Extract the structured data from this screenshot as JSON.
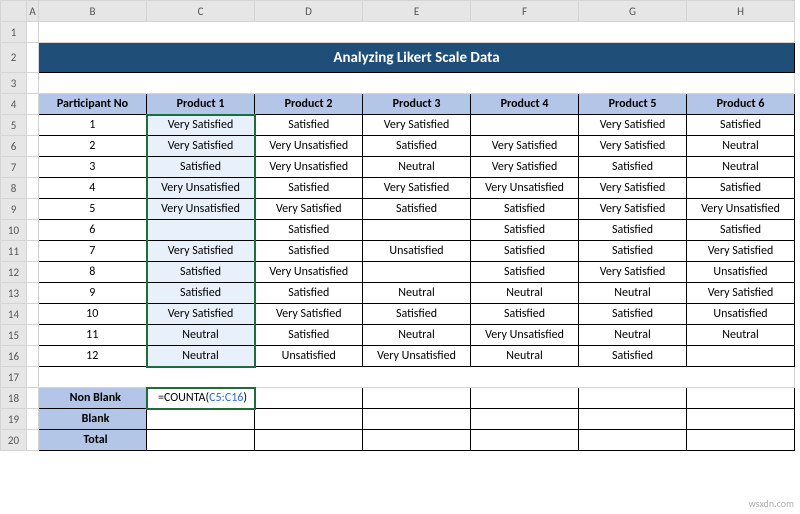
{
  "columns": [
    "A",
    "B",
    "C",
    "D",
    "E",
    "F",
    "G",
    "H"
  ],
  "rows": [
    "1",
    "2",
    "3",
    "4",
    "5",
    "6",
    "7",
    "8",
    "9",
    "10",
    "11",
    "12",
    "13",
    "14",
    "15",
    "16",
    "17",
    "18",
    "19",
    "20"
  ],
  "selected_col_hdr": "C",
  "title": "Analyzing Likert Scale Data",
  "headers": [
    "Participant No",
    "Product 1",
    "Product 2",
    "Product 3",
    "Product 4",
    "Product 5",
    "Product 6"
  ],
  "data": [
    [
      "1",
      "Very Satisfied",
      "Satisfied",
      "Very Satisfied",
      "",
      "Very Satisfied",
      "Satisfied"
    ],
    [
      "2",
      "Very Satisfied",
      "Very Unsatisfied",
      "Satisfied",
      "Very Satisfied",
      "Very Satisfied",
      "Neutral"
    ],
    [
      "3",
      "Satisfied",
      "Very Unsatisfied",
      "Neutral",
      "Very Satisfied",
      "Satisfied",
      "Neutral"
    ],
    [
      "4",
      "Very Unsatisfied",
      "Satisfied",
      "Very Satisfied",
      "Very Unsatisfied",
      "Very Satisfied",
      "Satisfied"
    ],
    [
      "5",
      "Very Unsatisfied",
      "Very Satisfied",
      "Satisfied",
      "Satisfied",
      "Very Satisfied",
      "Very Unsatisfied"
    ],
    [
      "6",
      "",
      "Satisfied",
      "",
      "Satisfied",
      "Satisfied",
      "Satisfied"
    ],
    [
      "7",
      "Very Satisfied",
      "Satisfied",
      "Unsatisfied",
      "Satisfied",
      "Satisfied",
      "Very Satisfied"
    ],
    [
      "8",
      "Satisfied",
      "Very Unsatisfied",
      "",
      "Satisfied",
      "Very Satisfied",
      "Unsatisfied"
    ],
    [
      "9",
      "Satisfied",
      "Satisfied",
      "Neutral",
      "Neutral",
      "Neutral",
      "Very Satisfied"
    ],
    [
      "10",
      "Very Satisfied",
      "Very Satisfied",
      "Satisfied",
      "Satisfied",
      "Satisfied",
      "Unsatisfied"
    ],
    [
      "11",
      "Neutral",
      "Satisfied",
      "Neutral",
      "Very Unsatisfied",
      "Neutral",
      "Neutral"
    ],
    [
      "12",
      "Neutral",
      "Unsatisfied",
      "Very Unsatisfied",
      "Neutral",
      "Satisfied",
      ""
    ]
  ],
  "summary_labels": [
    "Non Blank",
    "Blank",
    "Total"
  ],
  "formula": {
    "eq": "=",
    "fn": "COUNTA(",
    "ref": "C5:C16",
    "close": ")"
  },
  "watermark": "wsxdn.com",
  "colors": {
    "title_bg": "#1f4e79",
    "title_fg": "#ffffff",
    "header_bg": "#b4c6e7",
    "sel_border": "#1f6b3a",
    "sel_fill": "#e8f0fc",
    "grid": "#d4d4d4",
    "col_hdr_bg": "#e6e6e6",
    "ref_color": "#2e6bd6"
  }
}
